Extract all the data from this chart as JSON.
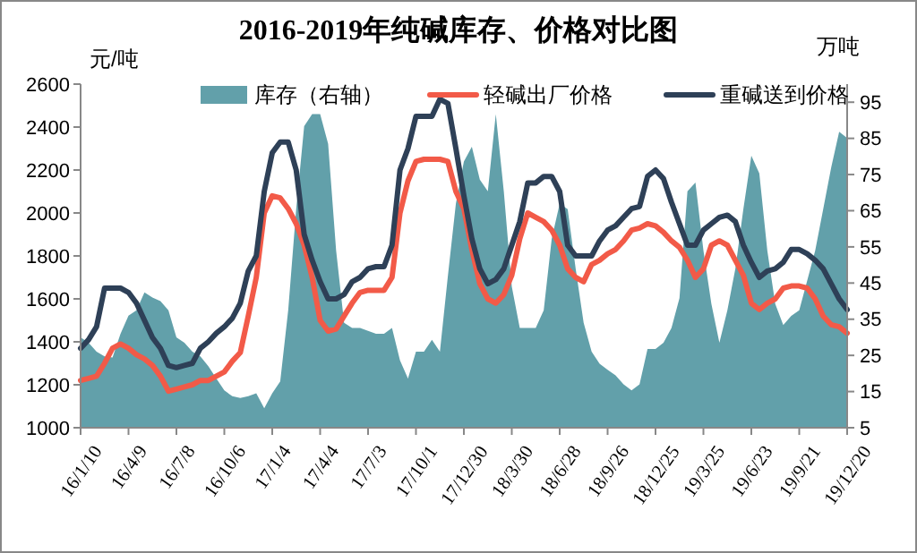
{
  "chart_data": {
    "type": "line",
    "title": "2016-2019年纯碱库存、价格对比图",
    "ylabel": "元/吨",
    "y2label": "万吨",
    "categories": [
      "16/1/10",
      null,
      null,
      null,
      null,
      null,
      "16/4/9",
      null,
      null,
      null,
      null,
      null,
      "16/7/8",
      null,
      null,
      null,
      null,
      null,
      "16/10/6",
      null,
      null,
      null,
      null,
      null,
      "17/1/4",
      null,
      null,
      null,
      null,
      null,
      "17/4/4",
      null,
      null,
      null,
      null,
      null,
      "17/7/3",
      null,
      null,
      null,
      null,
      null,
      "17/10/1",
      null,
      null,
      null,
      null,
      null,
      "17/12/30",
      null,
      null,
      null,
      null,
      null,
      "18/3/30",
      null,
      null,
      null,
      null,
      null,
      "18/6/28",
      null,
      null,
      null,
      null,
      null,
      "18/9/26",
      null,
      null,
      null,
      null,
      null,
      "18/12/25",
      null,
      null,
      null,
      null,
      null,
      "19/3/25",
      null,
      null,
      null,
      null,
      null,
      "19/6/23",
      null,
      null,
      null,
      null,
      null,
      "19/9/21",
      null,
      null,
      null,
      null,
      null,
      "19/12/20"
    ],
    "series": [
      {
        "name": "库存（右轴）",
        "type": "area",
        "axis": "y2",
        "color": "#62a0aa",
        "values": [
          30,
          28.5,
          26,
          24.7,
          24.4,
          31,
          36,
          37.5,
          42.4,
          41,
          40,
          37.5,
          30,
          28.5,
          26,
          24.7,
          22,
          18.6,
          15.3,
          13.7,
          13.2,
          13.7,
          14.5,
          10.4,
          14.5,
          17.8,
          37.5,
          65.4,
          88.4,
          91.7,
          91.7,
          83.5,
          54,
          34,
          32.6,
          32.6,
          31.8,
          31,
          31,
          32.6,
          23.6,
          18.6,
          26,
          26,
          29.3,
          26,
          47,
          67,
          78.6,
          82.7,
          73.6,
          70.4,
          91.7,
          70.4,
          44,
          32.6,
          32.6,
          32.6,
          37.5,
          57.2,
          67,
          65.4,
          49,
          34,
          26,
          22.7,
          21,
          19.5,
          17,
          15.3,
          17,
          26.8,
          26.8,
          28.5,
          32.6,
          40.8,
          70.4,
          72.8,
          54,
          39.2,
          28.5,
          37.5,
          49,
          65.4,
          80.2,
          75.3,
          54,
          39.2,
          33.4,
          35.9,
          37.5,
          45.7,
          54,
          65.4,
          76.9,
          86.8,
          85.1
        ]
      },
      {
        "name": "轻碱出厂价格",
        "color": "#f25a48",
        "values": [
          1220,
          1230,
          1240,
          1300,
          1370,
          1390,
          1370,
          1340,
          1320,
          1290,
          1240,
          1170,
          1180,
          1190,
          1200,
          1220,
          1220,
          1240,
          1260,
          1310,
          1350,
          1520,
          1700,
          2000,
          2080,
          2070,
          2020,
          1950,
          1850,
          1700,
          1500,
          1450,
          1460,
          1520,
          1580,
          1630,
          1640,
          1640,
          1640,
          1700,
          2000,
          2150,
          2240,
          2250,
          2250,
          2250,
          2240,
          2100,
          2020,
          1830,
          1670,
          1600,
          1580,
          1620,
          1710,
          1880,
          2000,
          1980,
          1960,
          1920,
          1850,
          1740,
          1700,
          1680,
          1760,
          1780,
          1810,
          1830,
          1870,
          1920,
          1930,
          1950,
          1940,
          1910,
          1870,
          1840,
          1780,
          1700,
          1740,
          1850,
          1870,
          1850,
          1780,
          1710,
          1580,
          1550,
          1580,
          1600,
          1650,
          1660,
          1660,
          1650,
          1600,
          1520,
          1480,
          1470,
          1440
        ]
      },
      {
        "name": "重碱送到价格",
        "color": "#2e4057",
        "values": [
          1370,
          1410,
          1470,
          1650,
          1650,
          1650,
          1630,
          1580,
          1500,
          1420,
          1370,
          1290,
          1280,
          1290,
          1300,
          1370,
          1400,
          1440,
          1470,
          1510,
          1580,
          1730,
          1800,
          2100,
          2280,
          2330,
          2330,
          2200,
          1900,
          1780,
          1680,
          1600,
          1600,
          1620,
          1680,
          1700,
          1740,
          1750,
          1750,
          1850,
          2200,
          2300,
          2450,
          2450,
          2450,
          2530,
          2510,
          2300,
          2080,
          1880,
          1740,
          1670,
          1690,
          1740,
          1850,
          1960,
          2140,
          2140,
          2170,
          2170,
          2100,
          1850,
          1800,
          1800,
          1800,
          1870,
          1920,
          1940,
          1980,
          2020,
          2030,
          2170,
          2200,
          2160,
          2050,
          1950,
          1850,
          1850,
          1920,
          1950,
          1980,
          1990,
          1960,
          1850,
          1770,
          1700,
          1730,
          1740,
          1770,
          1830,
          1830,
          1810,
          1780,
          1740,
          1670,
          1600,
          1550
        ]
      }
    ],
    "ylim": [
      1000,
      2600
    ],
    "yticks": [
      1000,
      1200,
      1400,
      1600,
      1800,
      2000,
      2200,
      2400,
      2600
    ],
    "y2lim": [
      5,
      100
    ],
    "y2ticks": [
      5,
      15,
      25,
      35,
      45,
      55,
      65,
      75,
      85,
      95
    ],
    "legend": "top",
    "grid": false,
    "marker": "none",
    "line_style": "solid"
  }
}
